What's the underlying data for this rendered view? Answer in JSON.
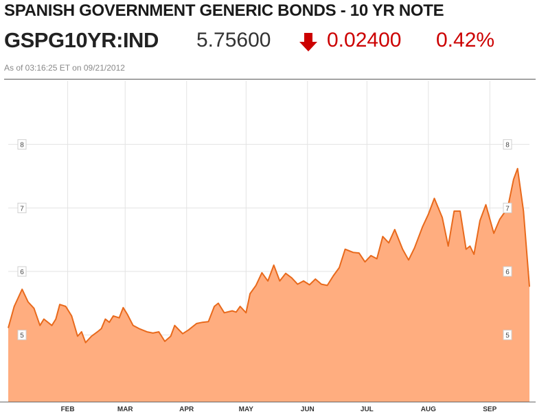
{
  "header": {
    "title": "SPANISH GOVERNMENT GENERIC BONDS - 10 YR NOTE",
    "ticker": "GSPG10YR:IND",
    "price": "5.75600",
    "change": "0.02400",
    "percent_change": "0.42%",
    "direction_icon": "down-arrow-icon",
    "as_of": "As of 03:16:25 ET on 09/21/2012"
  },
  "colors": {
    "area_fill": "#ffad7f",
    "line": "#e8691b",
    "down": "#cc0000",
    "grid": "#e3e3e3"
  },
  "chart_data": {
    "type": "area",
    "title": "",
    "xlabel": "",
    "ylabel": "",
    "ylim": [
      3.95,
      9.0
    ],
    "grid": true,
    "y_ticks": [
      5,
      6,
      7,
      8
    ],
    "x_ticks": [
      {
        "label": "FEB",
        "date": "2012-02-01"
      },
      {
        "label": "MAR",
        "date": "2012-03-01"
      },
      {
        "label": "APR",
        "date": "2012-04-01"
      },
      {
        "label": "MAY",
        "date": "2012-05-01"
      },
      {
        "label": "JUN",
        "date": "2012-06-01"
      },
      {
        "label": "JUL",
        "date": "2012-07-01"
      },
      {
        "label": "AUG",
        "date": "2012-08-01"
      },
      {
        "label": "SEP",
        "date": "2012-09-01"
      }
    ],
    "xlim": [
      "2012-01-02",
      "2012-09-21"
    ],
    "series": [
      {
        "points": [
          [
            "2012-01-02",
            5.11
          ],
          [
            "2012-01-05",
            5.45
          ],
          [
            "2012-01-09",
            5.72
          ],
          [
            "2012-01-12",
            5.52
          ],
          [
            "2012-01-15",
            5.42
          ],
          [
            "2012-01-18",
            5.15
          ],
          [
            "2012-01-20",
            5.25
          ],
          [
            "2012-01-24",
            5.15
          ],
          [
            "2012-01-26",
            5.25
          ],
          [
            "2012-01-28",
            5.48
          ],
          [
            "2012-01-31",
            5.45
          ],
          [
            "2012-02-03",
            5.3
          ],
          [
            "2012-02-06",
            4.98
          ],
          [
            "2012-02-08",
            5.05
          ],
          [
            "2012-02-10",
            4.88
          ],
          [
            "2012-02-13",
            4.98
          ],
          [
            "2012-02-16",
            5.05
          ],
          [
            "2012-02-18",
            5.1
          ],
          [
            "2012-02-20",
            5.25
          ],
          [
            "2012-02-22",
            5.2
          ],
          [
            "2012-02-24",
            5.3
          ],
          [
            "2012-02-27",
            5.27
          ],
          [
            "2012-02-29",
            5.43
          ],
          [
            "2012-03-02",
            5.33
          ],
          [
            "2012-03-05",
            5.15
          ],
          [
            "2012-03-08",
            5.1
          ],
          [
            "2012-03-12",
            5.05
          ],
          [
            "2012-03-15",
            5.03
          ],
          [
            "2012-03-18",
            5.05
          ],
          [
            "2012-03-21",
            4.9
          ],
          [
            "2012-03-24",
            4.98
          ],
          [
            "2012-03-26",
            5.15
          ],
          [
            "2012-03-30",
            5.02
          ],
          [
            "2012-04-02",
            5.08
          ],
          [
            "2012-04-06",
            5.18
          ],
          [
            "2012-04-09",
            5.2
          ],
          [
            "2012-04-12",
            5.21
          ],
          [
            "2012-04-15",
            5.45
          ],
          [
            "2012-04-17",
            5.5
          ],
          [
            "2012-04-20",
            5.35
          ],
          [
            "2012-04-24",
            5.38
          ],
          [
            "2012-04-26",
            5.36
          ],
          [
            "2012-04-28",
            5.45
          ],
          [
            "2012-05-01",
            5.35
          ],
          [
            "2012-05-03",
            5.65
          ],
          [
            "2012-05-06",
            5.78
          ],
          [
            "2012-05-09",
            5.98
          ],
          [
            "2012-05-12",
            5.85
          ],
          [
            "2012-05-15",
            6.1
          ],
          [
            "2012-05-18",
            5.85
          ],
          [
            "2012-05-21",
            5.97
          ],
          [
            "2012-05-24",
            5.9
          ],
          [
            "2012-05-27",
            5.8
          ],
          [
            "2012-05-30",
            5.85
          ],
          [
            "2012-06-02",
            5.79
          ],
          [
            "2012-06-05",
            5.88
          ],
          [
            "2012-06-08",
            5.8
          ],
          [
            "2012-06-11",
            5.78
          ],
          [
            "2012-06-14",
            5.93
          ],
          [
            "2012-06-17",
            6.06
          ],
          [
            "2012-06-20",
            6.35
          ],
          [
            "2012-06-24",
            6.3
          ],
          [
            "2012-06-27",
            6.29
          ],
          [
            "2012-06-30",
            6.15
          ],
          [
            "2012-07-03",
            6.25
          ],
          [
            "2012-07-06",
            6.2
          ],
          [
            "2012-07-09",
            6.55
          ],
          [
            "2012-07-12",
            6.45
          ],
          [
            "2012-07-15",
            6.66
          ],
          [
            "2012-07-19",
            6.35
          ],
          [
            "2012-07-22",
            6.18
          ],
          [
            "2012-07-25",
            6.37
          ],
          [
            "2012-07-29",
            6.7
          ],
          [
            "2012-08-01",
            6.9
          ],
          [
            "2012-08-04",
            7.15
          ],
          [
            "2012-08-08",
            6.85
          ],
          [
            "2012-08-11",
            6.4
          ],
          [
            "2012-08-14",
            6.95
          ],
          [
            "2012-08-17",
            6.95
          ],
          [
            "2012-08-20",
            6.35
          ],
          [
            "2012-08-22",
            6.4
          ],
          [
            "2012-08-24",
            6.27
          ],
          [
            "2012-08-27",
            6.8
          ],
          [
            "2012-08-30",
            7.05
          ],
          [
            "2012-09-03",
            6.6
          ],
          [
            "2012-09-06",
            6.82
          ],
          [
            "2012-09-10",
            7.0
          ],
          [
            "2012-09-13",
            7.45
          ],
          [
            "2012-09-15",
            7.62
          ],
          [
            "2012-09-18",
            6.95
          ],
          [
            "2012-09-21",
            5.76
          ]
        ]
      }
    ]
  }
}
